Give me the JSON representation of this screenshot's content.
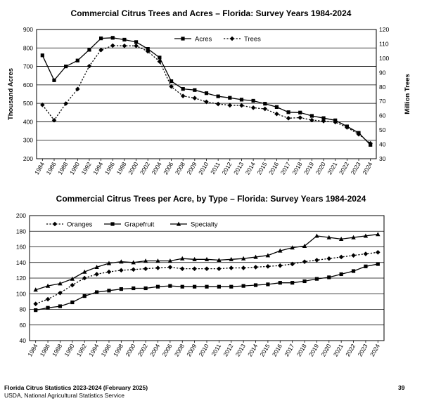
{
  "chart_data": [
    {
      "type": "line",
      "title": "Commercial Citrus Trees and Acres – Florida:  Survey Years 1984-2024",
      "ylabel": "Thousand Acres",
      "y2label": "Million Trees",
      "categories": [
        "1984",
        "1986",
        "1988",
        "1990",
        "1992",
        "1994",
        "1996",
        "1998",
        "2000",
        "2002",
        "2004",
        "2006",
        "2008",
        "2009",
        "2010",
        "2011",
        "2012",
        "2013",
        "2014",
        "2015",
        "2016",
        "2017",
        "2018",
        "2019",
        "2020",
        "2021",
        "2022",
        "2023",
        "2024"
      ],
      "ylim": [
        200,
        900
      ],
      "y2lim": [
        30,
        120
      ],
      "yticks": [
        "200",
        "300",
        "400",
        "500",
        "600",
        "700",
        "800",
        "900"
      ],
      "y2ticks": [
        "30",
        "40",
        "50",
        "60",
        "70",
        "80",
        "90",
        "100",
        "110",
        "120"
      ],
      "grid": true,
      "legend": "top-center",
      "series": [
        {
          "name": "Acres",
          "axis": "left",
          "marker": "square",
          "dash": false,
          "values": [
            760,
            625,
            700,
            732,
            790,
            852,
            855,
            845,
            832,
            795,
            748,
            620,
            578,
            572,
            555,
            538,
            530,
            520,
            514,
            498,
            480,
            452,
            450,
            432,
            420,
            408,
            375,
            340,
            275
          ]
        },
        {
          "name": "Trees",
          "axis": "right",
          "marker": "diamond",
          "dash": true,
          "values": [
            67.5,
            56.8,
            68.4,
            78.5,
            94.5,
            105.7,
            108.8,
            108.6,
            108.6,
            104.8,
            97.7,
            80.3,
            73.7,
            72.2,
            69.6,
            68.1,
            67.2,
            67.1,
            65.5,
            64.7,
            61.2,
            58.2,
            58.6,
            56.9,
            56.2,
            55.5,
            51.8,
            47.0,
            40.7
          ]
        }
      ]
    },
    {
      "type": "line",
      "title": "Commercial Citrus Trees per Acre, by Type – Florida:  Survey Years 1984-2024",
      "categories": [
        "1984",
        "1986",
        "1988",
        "1990",
        "1992",
        "1994",
        "1996",
        "1998",
        "2000",
        "2002",
        "2004",
        "2006",
        "2008",
        "2009",
        "2010",
        "2011",
        "2012",
        "2013",
        "2014",
        "2015",
        "2016",
        "2017",
        "2018",
        "2019",
        "2020",
        "2021",
        "2022",
        "2023",
        "2024"
      ],
      "ylim": [
        40,
        200
      ],
      "yticks": [
        "40",
        "60",
        "80",
        "100",
        "120",
        "140",
        "160",
        "180",
        "200"
      ],
      "grid": true,
      "legend": "top-left",
      "series": [
        {
          "name": "Oranges",
          "marker": "diamond",
          "dash": true,
          "values": [
            87,
            93,
            101,
            111,
            120,
            125,
            128,
            130,
            131,
            132,
            133,
            134,
            132,
            132,
            132,
            132,
            133,
            133,
            134,
            135,
            136,
            138,
            141,
            143,
            145,
            147,
            149,
            151,
            153
          ]
        },
        {
          "name": "Grapefruit",
          "marker": "square",
          "dash": false,
          "values": [
            79,
            82,
            84,
            89,
            97,
            102,
            104,
            106,
            107,
            107,
            109,
            110,
            109,
            109,
            109,
            109,
            109,
            110,
            111,
            112,
            114,
            114,
            116,
            119,
            121,
            125,
            129,
            135,
            138
          ]
        },
        {
          "name": "Specialty",
          "marker": "triangle",
          "dash": false,
          "values": [
            105,
            110,
            113,
            119,
            128,
            134,
            139,
            141,
            140,
            142,
            142,
            142,
            145,
            144,
            144,
            143,
            144,
            145,
            147,
            149,
            155,
            159,
            161,
            174,
            172,
            170,
            172,
            174,
            176
          ]
        }
      ]
    }
  ],
  "footer": {
    "line1": "Florida Citrus Statistics 2023-2024 (February 2025)",
    "line2": "USDA, National Agricultural Statistics Service",
    "page": "39"
  }
}
